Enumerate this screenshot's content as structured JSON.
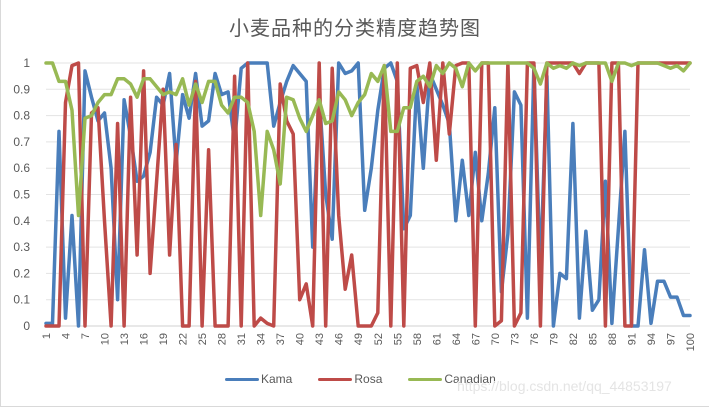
{
  "chart_data": {
    "type": "line",
    "title": "小麦品种的分类精度趋势图",
    "xlabel": "",
    "ylabel": "",
    "ylim": [
      0,
      1
    ],
    "yticks": [
      "0",
      "0.1",
      "0.2",
      "0.3",
      "0.4",
      "0.5",
      "0.6",
      "0.7",
      "0.8",
      "0.9",
      "1"
    ],
    "xtick_labels": [
      "1",
      "4",
      "7",
      "10",
      "13",
      "16",
      "19",
      "22",
      "25",
      "28",
      "31",
      "34",
      "37",
      "40",
      "43",
      "46",
      "49",
      "52",
      "55",
      "58",
      "61",
      "64",
      "67",
      "70",
      "73",
      "76",
      "79",
      "82",
      "85",
      "88",
      "91",
      "94",
      "97",
      "100"
    ],
    "grid": true,
    "legend_position": "bottom",
    "x": [
      1,
      2,
      3,
      4,
      5,
      6,
      7,
      8,
      9,
      10,
      11,
      12,
      13,
      14,
      15,
      16,
      17,
      18,
      19,
      20,
      21,
      22,
      23,
      24,
      25,
      26,
      27,
      28,
      29,
      30,
      31,
      32,
      33,
      34,
      35,
      36,
      37,
      38,
      39,
      40,
      41,
      42,
      43,
      44,
      45,
      46,
      47,
      48,
      49,
      50,
      51,
      52,
      53,
      54,
      55,
      56,
      57,
      58,
      59,
      60,
      61,
      62,
      63,
      64,
      65,
      66,
      67,
      68,
      69,
      70,
      71,
      72,
      73,
      74,
      75,
      76,
      77,
      78,
      79,
      80,
      81,
      82,
      83,
      84,
      85,
      86,
      87,
      88,
      89,
      90,
      91,
      92,
      93,
      94,
      95,
      96,
      97,
      98,
      99,
      100
    ],
    "series": [
      {
        "name": "Kama",
        "color": "#4a7ebb",
        "values": [
          0.01,
          0.01,
          0.74,
          0.03,
          0.42,
          0.0,
          0.97,
          0.87,
          0.78,
          0.81,
          0.6,
          0.1,
          0.86,
          0.72,
          0.55,
          0.57,
          0.66,
          0.87,
          0.84,
          0.96,
          0.62,
          0.88,
          0.79,
          0.96,
          0.76,
          0.78,
          0.96,
          0.88,
          0.89,
          0.7,
          0.98,
          1.0,
          1.0,
          1.0,
          1.0,
          0.76,
          0.85,
          0.93,
          0.99,
          0.96,
          0.93,
          0.3,
          0.88,
          0.5,
          0.33,
          1.0,
          0.96,
          0.97,
          1.0,
          0.44,
          0.6,
          0.82,
          0.98,
          1.0,
          0.93,
          0.37,
          0.42,
          0.92,
          0.6,
          0.96,
          0.9,
          0.84,
          0.77,
          0.4,
          0.63,
          0.42,
          0.66,
          0.4,
          0.58,
          0.83,
          0.13,
          0.35,
          0.89,
          0.84,
          0.03,
          0.99,
          0.2,
          0.95,
          0.0,
          0.2,
          0.18,
          0.77,
          0.03,
          0.36,
          0.06,
          0.1,
          0.55,
          0.01,
          0.37,
          0.74,
          0.0,
          0.0,
          0.29,
          0.01,
          0.17,
          0.17,
          0.11,
          0.11,
          0.04,
          0.04
        ]
      },
      {
        "name": "Rosa",
        "color": "#be4b48",
        "values": [
          0.0,
          0.0,
          0.0,
          0.85,
          0.99,
          1.0,
          0.0,
          0.81,
          0.83,
          0.4,
          0.0,
          0.77,
          0.0,
          0.87,
          0.27,
          0.97,
          0.2,
          0.55,
          0.9,
          0.27,
          0.69,
          0.0,
          0.0,
          0.93,
          0.0,
          0.67,
          0.0,
          0.0,
          0.0,
          0.95,
          0.0,
          1.0,
          0.0,
          0.03,
          0.01,
          0.0,
          0.92,
          0.78,
          0.73,
          0.1,
          0.16,
          0.0,
          1.0,
          0.0,
          0.98,
          0.42,
          0.14,
          0.27,
          0.0,
          0.0,
          0.0,
          0.05,
          0.99,
          0.0,
          1.0,
          0.0,
          0.98,
          0.99,
          0.85,
          1.0,
          0.63,
          1.0,
          0.73,
          0.99,
          1.0,
          1.0,
          0.0,
          1.0,
          1.0,
          0.0,
          0.02,
          1.0,
          0.0,
          0.05,
          1.0,
          1.0,
          0.0,
          1.0,
          1.0,
          1.0,
          1.0,
          1.0,
          0.96,
          1.0,
          1.0,
          1.0,
          0.0,
          1.0,
          1.0,
          0.0,
          0.0,
          1.0,
          1.0,
          1.0,
          1.0,
          1.0,
          1.0,
          1.0,
          1.0,
          1.0
        ]
      },
      {
        "name": "Canadian",
        "color": "#98b954",
        "values": [
          1.0,
          1.0,
          0.93,
          0.93,
          0.82,
          0.42,
          0.79,
          0.8,
          0.85,
          0.88,
          0.88,
          0.94,
          0.94,
          0.92,
          0.87,
          0.94,
          0.94,
          0.91,
          0.88,
          0.89,
          0.88,
          0.94,
          0.84,
          0.92,
          0.85,
          0.93,
          0.93,
          0.84,
          0.81,
          0.87,
          0.87,
          0.85,
          0.74,
          0.42,
          0.74,
          0.67,
          0.54,
          0.87,
          0.86,
          0.79,
          0.74,
          0.8,
          0.86,
          0.77,
          0.78,
          0.89,
          0.86,
          0.8,
          0.85,
          0.88,
          0.96,
          0.93,
          0.99,
          0.74,
          0.74,
          0.83,
          0.83,
          0.93,
          0.95,
          0.91,
          0.99,
          0.96,
          1.0,
          0.98,
          0.91,
          1.0,
          0.97,
          1.0,
          1.0,
          1.0,
          1.0,
          1.0,
          1.0,
          1.0,
          1.0,
          0.98,
          0.92,
          1.0,
          0.98,
          0.99,
          0.98,
          1.0,
          0.99,
          1.0,
          1.0,
          1.0,
          1.0,
          0.93,
          1.0,
          1.0,
          0.99,
          1.0,
          1.0,
          1.0,
          1.0,
          0.99,
          0.98,
          0.99,
          0.97,
          1.0
        ]
      }
    ]
  },
  "legend": {
    "items": [
      {
        "label": "Kama",
        "color": "#4a7ebb"
      },
      {
        "label": "Rosa",
        "color": "#be4b48"
      },
      {
        "label": "Canadian",
        "color": "#98b954"
      }
    ]
  },
  "watermark": "https://blog.csdn.net/qq_44853197"
}
